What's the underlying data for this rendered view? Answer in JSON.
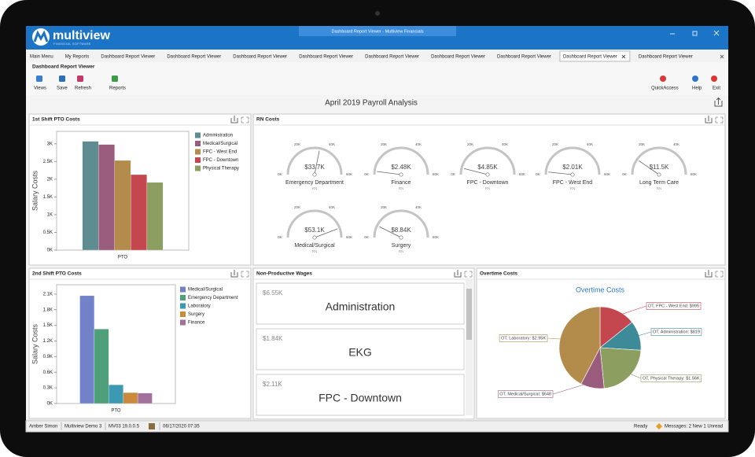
{
  "window": {
    "title": "Dashboard Report Viewer - Multiview Financials",
    "logo": "multiview",
    "logo_sub": "FINANCIAL SOFTWARE"
  },
  "tabs": {
    "items": [
      "Main Menu",
      "My Reports",
      "Dashboard Report Viewer",
      "Dashboard Report Viewer",
      "Dashboard Report Viewer",
      "Dashboard Report Viewer",
      "Dashboard Report Viewer",
      "Dashboard Report Viewer",
      "Dashboard Report Viewer",
      "Dashboard Report Viewer",
      "Dashboard Report Viewer"
    ],
    "active": 9
  },
  "toolbar": {
    "title": "Dashboard Report Viewer",
    "buttons": [
      "Views",
      "Save",
      "Refresh",
      "Reports"
    ],
    "right_buttons": [
      "QuickAccess",
      "Help",
      "Exit"
    ]
  },
  "dashboard_title": "April 2019 Payroll Analysis",
  "chart_data": [
    {
      "type": "bar",
      "title": "1st Shift PTO Costs",
      "categories": [
        "PTO"
      ],
      "ylabel": "Salary Costs",
      "series": [
        {
          "name": "Administration",
          "color": "#5e8c90",
          "values": [
            3070
          ]
        },
        {
          "name": "Medical/Surgical",
          "color": "#9a5c7c",
          "values": [
            2980
          ]
        },
        {
          "name": "FPC - West End",
          "color": "#b38c4c",
          "values": [
            2530
          ]
        },
        {
          "name": "FPC - Downtown",
          "color": "#c4474f",
          "values": [
            2130
          ]
        },
        {
          "name": "Physical Therapy",
          "color": "#8c9f60",
          "values": [
            1910
          ]
        }
      ],
      "ylim": [
        0,
        3350
      ],
      "yticks": [
        {
          "value": 0,
          "label": "0K"
        },
        {
          "value": 500,
          "label": "0.5K"
        },
        {
          "value": 1000,
          "label": "1K"
        },
        {
          "value": 1500,
          "label": "1.5K"
        },
        {
          "value": 2000,
          "label": "2K"
        },
        {
          "value": 2500,
          "label": "2.5K"
        },
        {
          "value": 3000,
          "label": "3K"
        }
      ],
      "legend": "right"
    },
    {
      "type": "gauge",
      "title": "RN Costs",
      "categories": [
        "Emergency Department",
        "Finance",
        "FPC - Downtown",
        "FPC - West End",
        "Long Term Care",
        "Medical/Surgical",
        "Surgery"
      ],
      "subtitles": [
        "RN",
        "RN",
        "RN",
        "RN",
        "RN",
        "RN",
        "RN"
      ],
      "values": [
        33700,
        2480,
        4850,
        2010,
        11500,
        53100,
        8840
      ],
      "value_labels": [
        "$33.7K",
        "$2.48K",
        "$4.85K",
        "$2.01K",
        "$11.5K",
        "$53.1K",
        "$8.84K"
      ],
      "ylim": [
        0,
        60000
      ],
      "yticks": [
        {
          "value": 0,
          "label": "0K"
        },
        {
          "value": 20000,
          "label": "20K"
        },
        {
          "value": 40000,
          "label": "40K"
        },
        {
          "value": 60000,
          "label": "60K"
        }
      ]
    },
    {
      "type": "bar",
      "title": "2nd Shift PTO Costs",
      "categories": [
        "PTO"
      ],
      "ylabel": "Salary Costs",
      "series": [
        {
          "name": "Medical/Surgical",
          "color": "#7282c9",
          "values": [
            2070
          ]
        },
        {
          "name": "Emergency Department",
          "color": "#4f9f7b",
          "values": [
            1430
          ]
        },
        {
          "name": "Laboratory",
          "color": "#3b9ab1",
          "values": [
            360
          ]
        },
        {
          "name": "Surgery",
          "color": "#c98b3b",
          "values": [
            210
          ]
        },
        {
          "name": "Finance",
          "color": "#a2719b",
          "values": [
            200
          ]
        }
      ],
      "ylim": [
        0,
        2280
      ],
      "yticks": [
        {
          "value": 0,
          "label": "0K"
        },
        {
          "value": 300,
          "label": "0.3K"
        },
        {
          "value": 600,
          "label": "0.6K"
        },
        {
          "value": 900,
          "label": "0.9K"
        },
        {
          "value": 1200,
          "label": "1.2K"
        },
        {
          "value": 1500,
          "label": "1.5K"
        },
        {
          "value": 1800,
          "label": "1.8K"
        },
        {
          "value": 2100,
          "label": "2.1K"
        }
      ],
      "legend": "right"
    },
    {
      "type": "pie",
      "title": "Overtime Costs",
      "chart_title": "Overtime Costs",
      "values": [
        995,
        819,
        1560,
        648,
        2950
      ],
      "value_labels": [
        "OT, FPC - West End: $995",
        "OT, Administration: $819",
        "OT, Physical Therapy: $1.56K",
        "OT, Medical/Surgical: $648",
        "OT, Laboratory: $2.95K"
      ],
      "colors": [
        "#c4474f",
        "#3d8b99",
        "#8c9f60",
        "#9a5c7c",
        "#b38c4c"
      ]
    }
  ],
  "cards": {
    "title": "Non-Productive Wages",
    "items": [
      {
        "value": "$6.55K",
        "label": "Administration"
      },
      {
        "value": "$1.84K",
        "label": "EKG"
      },
      {
        "value": "$2.11K",
        "label": "FPC - Downtown"
      }
    ]
  },
  "status_bar": {
    "left": [
      "Amber Simon",
      "Multiview Demo 3",
      "MV03 19.0.0.5",
      "06/17/2020 07:35"
    ],
    "ready": "Ready",
    "messages": "Messages: 2 New 1 Unread"
  }
}
